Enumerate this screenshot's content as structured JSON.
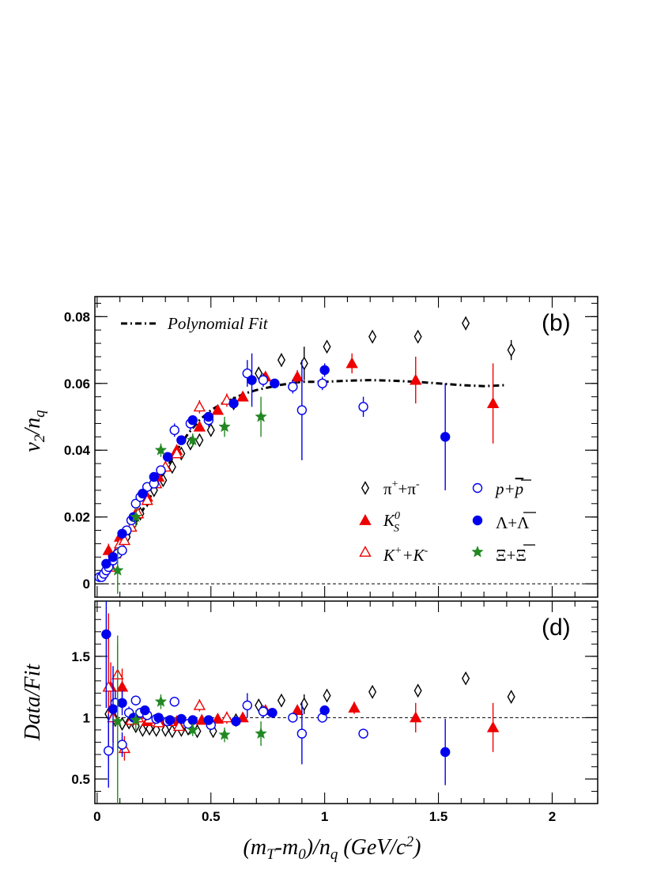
{
  "colors": {
    "pi": "#000000",
    "ks": "#ee0000",
    "kch": "#ee0000",
    "p": "#0000ee",
    "lambda": "#0000ee",
    "xi": "#228822"
  },
  "chart_data": [
    {
      "type": "scatter",
      "panel_label": "(b)",
      "ylabel": "v2/nq",
      "ylim": [
        -0.004,
        0.086
      ],
      "xlim": [
        -0.01,
        2.2
      ],
      "yticks": [
        0,
        0.02,
        0.04,
        0.06,
        0.08
      ],
      "ytick_labels": [
        "0",
        "0.02",
        "0.04",
        "0.06",
        "0.08"
      ],
      "reference_line": 0,
      "fit": {
        "name": "Polynomial Fit",
        "x": [
          0.1,
          0.15,
          0.2,
          0.25,
          0.3,
          0.35,
          0.4,
          0.45,
          0.5,
          0.55,
          0.6,
          0.65,
          0.7,
          0.8,
          0.9,
          1.0,
          1.1,
          1.2,
          1.3,
          1.4,
          1.5,
          1.6,
          1.7,
          1.8
        ],
        "y": [
          0.01,
          0.016,
          0.022,
          0.028,
          0.034,
          0.04,
          0.045,
          0.049,
          0.052,
          0.054,
          0.0555,
          0.057,
          0.058,
          0.0595,
          0.0605,
          0.0605,
          0.0608,
          0.061,
          0.0608,
          0.0605,
          0.06,
          0.0595,
          0.0592,
          0.0595
        ]
      },
      "series": [
        {
          "name": "π⁺+π⁻",
          "key": "pi",
          "marker": "diamond-open",
          "x": [
            0.04,
            0.06,
            0.08,
            0.1,
            0.13,
            0.16,
            0.19,
            0.22,
            0.25,
            0.29,
            0.33,
            0.37,
            0.41,
            0.45,
            0.5,
            0.6,
            0.71,
            0.81,
            0.91,
            1.01,
            1.21,
            1.41,
            1.62,
            1.82
          ],
          "y": [
            0.004,
            0.006,
            0.008,
            0.01,
            0.014,
            0.018,
            0.021,
            0.025,
            0.028,
            0.031,
            0.035,
            0.039,
            0.042,
            0.043,
            0.046,
            0.054,
            0.063,
            0.067,
            0.066,
            0.071,
            0.074,
            0.074,
            0.078,
            0.07
          ],
          "err": [
            0.001,
            0.001,
            0.001,
            0.001,
            0.001,
            0.001,
            0.001,
            0.001,
            0.001,
            0.001,
            0.001,
            0.001,
            0.001,
            0.001,
            0.001,
            0.001,
            0.001,
            0.002,
            0.005,
            0.001,
            0.001,
            0.001,
            0.002,
            0.003
          ]
        },
        {
          "name": "K_S^0",
          "key": "ks",
          "marker": "triangle-filled",
          "x": [
            0.05,
            0.1,
            0.17,
            0.22,
            0.27,
            0.35,
            0.45,
            0.53,
            0.64,
            0.74,
            0.88,
            1.12,
            1.4,
            1.74
          ],
          "y": [
            0.01,
            0.014,
            0.021,
            0.026,
            0.032,
            0.04,
            0.047,
            0.052,
            0.056,
            0.062,
            0.062,
            0.066,
            0.061,
            0.054
          ],
          "err": [
            0.002,
            0.002,
            0.001,
            0.001,
            0.001,
            0.001,
            0.001,
            0.001,
            0.001,
            0.001,
            0.002,
            0.003,
            0.007,
            0.012
          ]
        },
        {
          "name": "K⁺+K⁻",
          "key": "kch",
          "marker": "triangle-open",
          "x": [
            0.06,
            0.08,
            0.1,
            0.12,
            0.15,
            0.18,
            0.22,
            0.26,
            0.3,
            0.35,
            0.45,
            0.57
          ],
          "y": [
            0.005,
            0.009,
            0.012,
            0.013,
            0.017,
            0.021,
            0.025,
            0.03,
            0.035,
            0.039,
            0.053,
            0.055
          ],
          "err": [
            0.001,
            0.001,
            0.001,
            0.001,
            0.001,
            0.001,
            0.001,
            0.001,
            0.001,
            0.001,
            0.002,
            0.002
          ]
        },
        {
          "name": "p+p̄",
          "key": "p",
          "marker": "circle-open",
          "x": [
            0.01,
            0.02,
            0.03,
            0.04,
            0.05,
            0.07,
            0.09,
            0.11,
            0.13,
            0.15,
            0.17,
            0.19,
            0.22,
            0.25,
            0.28,
            0.34,
            0.41,
            0.49,
            0.66,
            0.73,
            0.86,
            0.9,
            0.99,
            1.17
          ],
          "y": [
            0.002,
            0.002,
            0.003,
            0.004,
            0.005,
            0.007,
            0.009,
            0.01,
            0.016,
            0.019,
            0.024,
            0.026,
            0.029,
            0.03,
            0.034,
            0.046,
            0.048,
            0.049,
            0.063,
            0.061,
            0.059,
            0.052,
            0.06,
            0.053
          ],
          "err": [
            0.001,
            0.001,
            0.001,
            0.001,
            0.001,
            0.001,
            0.001,
            0.001,
            0.001,
            0.001,
            0.001,
            0.001,
            0.001,
            0.001,
            0.001,
            0.002,
            0.002,
            0.002,
            0.004,
            0.002,
            0.002,
            0.015,
            0.002,
            0.003
          ]
        },
        {
          "name": "Λ+Λ̄",
          "key": "lambda",
          "marker": "circle-filled",
          "x": [
            0.04,
            0.07,
            0.11,
            0.16,
            0.2,
            0.25,
            0.31,
            0.37,
            0.42,
            0.49,
            0.6,
            0.68,
            0.78,
            1.0,
            1.53
          ],
          "y": [
            0.006,
            0.008,
            0.015,
            0.02,
            0.027,
            0.032,
            0.038,
            0.043,
            0.049,
            0.05,
            0.054,
            0.061,
            0.06,
            0.064,
            0.044
          ],
          "err": [
            0.001,
            0.001,
            0.001,
            0.001,
            0.001,
            0.001,
            0.001,
            0.001,
            0.001,
            0.001,
            0.001,
            0.008,
            0.001,
            0.002,
            0.016
          ]
        },
        {
          "name": "Ξ+Ξ̄",
          "key": "xi",
          "marker": "star",
          "x": [
            0.09,
            0.17,
            0.28,
            0.42,
            0.56,
            0.72
          ],
          "y": [
            0.004,
            0.02,
            0.04,
            0.043,
            0.047,
            0.05
          ],
          "err": [
            0.007,
            0.003,
            0.002,
            0.002,
            0.003,
            0.006
          ]
        }
      ]
    },
    {
      "type": "scatter",
      "panel_label": "(d)",
      "ylabel": "Data/Fit",
      "xlabel": "(mT-m0)/nq (GeV/c2)",
      "ylim": [
        0.3,
        1.95
      ],
      "xlim": [
        -0.01,
        2.2
      ],
      "yticks": [
        0.5,
        1,
        1.5
      ],
      "ytick_labels": [
        "0.5",
        "1",
        "1.5"
      ],
      "xticks": [
        0,
        0.5,
        1,
        1.5,
        2
      ],
      "xtick_labels": [
        "0",
        "0.5",
        "1",
        "1.5",
        "2"
      ],
      "reference_line": 1,
      "series": [
        {
          "name": "π⁺+π⁻",
          "key": "pi",
          "marker": "diamond-open",
          "x": [
            0.05,
            0.08,
            0.11,
            0.14,
            0.17,
            0.2,
            0.23,
            0.26,
            0.3,
            0.33,
            0.37,
            0.4,
            0.44,
            0.51,
            0.61,
            0.71,
            0.81,
            0.91,
            1.01,
            1.21,
            1.41,
            1.62,
            1.82
          ],
          "y": [
            1.03,
            0.98,
            0.95,
            0.96,
            0.93,
            0.9,
            0.91,
            0.9,
            0.9,
            0.89,
            0.9,
            0.91,
            0.89,
            0.89,
            0.98,
            1.1,
            1.14,
            1.11,
            1.18,
            1.21,
            1.22,
            1.32,
            1.17
          ],
          "err": [
            0.05,
            0.03,
            0.02,
            0.02,
            0.02,
            0.02,
            0.02,
            0.02,
            0.02,
            0.02,
            0.02,
            0.02,
            0.02,
            0.02,
            0.02,
            0.03,
            0.04,
            0.08,
            0.03,
            0.02,
            0.02,
            0.03,
            0.04
          ]
        },
        {
          "name": "K_S^0",
          "key": "ks",
          "marker": "triangle-filled",
          "x": [
            0.06,
            0.11,
            0.17,
            0.22,
            0.28,
            0.35,
            0.46,
            0.53,
            0.64,
            0.74,
            0.88,
            1.13,
            1.4,
            1.74
          ],
          "y": [
            1.25,
            1.25,
            1.0,
            0.97,
            0.97,
            0.97,
            0.98,
            0.99,
            1.0,
            1.06,
            1.06,
            1.08,
            1.0,
            0.92
          ],
          "err": [
            0.2,
            0.15,
            0.04,
            0.03,
            0.03,
            0.03,
            0.03,
            0.03,
            0.03,
            0.03,
            0.04,
            0.05,
            0.12,
            0.2
          ]
        },
        {
          "name": "K⁺+K⁻",
          "key": "kch",
          "marker": "triangle-open",
          "x": [
            0.05,
            0.07,
            0.09,
            0.12,
            0.15,
            0.18,
            0.2,
            0.23,
            0.27,
            0.32,
            0.36,
            0.45,
            0.57
          ],
          "y": [
            1.25,
            1.0,
            1.35,
            0.75,
            0.98,
            1.0,
            1.03,
            0.99,
            0.96,
            0.97,
            0.93,
            1.1,
            1.0
          ],
          "err": [
            0.6,
            0.2,
            0.25,
            0.1,
            0.05,
            0.04,
            0.04,
            0.03,
            0.03,
            0.03,
            0.03,
            0.05,
            0.05
          ]
        },
        {
          "name": "p+p̄",
          "key": "p",
          "marker": "circle-open",
          "x": [
            0.05,
            0.08,
            0.11,
            0.14,
            0.17,
            0.19,
            0.22,
            0.26,
            0.31,
            0.34,
            0.4,
            0.5,
            0.66,
            0.73,
            0.86,
            0.9,
            0.99,
            1.17
          ],
          "y": [
            0.73,
            1.12,
            0.78,
            1.04,
            1.14,
            1.04,
            1.02,
            0.99,
            0.97,
            1.13,
            0.95,
            0.94,
            1.1,
            1.05,
            1.0,
            0.87,
            1.0,
            0.87
          ],
          "err": [
            0.3,
            0.1,
            0.1,
            0.05,
            0.04,
            0.04,
            0.03,
            0.03,
            0.03,
            0.04,
            0.04,
            0.04,
            0.1,
            0.05,
            0.04,
            0.25,
            0.04,
            0.04
          ]
        },
        {
          "name": "Λ+Λ̄",
          "key": "lambda",
          "marker": "circle-filled",
          "x": [
            0.04,
            0.07,
            0.11,
            0.16,
            0.21,
            0.27,
            0.32,
            0.37,
            0.42,
            0.49,
            0.61,
            0.77,
            1.0,
            1.53
          ],
          "y": [
            1.68,
            1.07,
            1.12,
            1.0,
            1.06,
            1.0,
            0.98,
            0.99,
            0.98,
            0.98,
            0.97,
            1.04,
            1.06,
            0.72
          ],
          "err": [
            0.6,
            0.35,
            0.1,
            0.04,
            0.03,
            0.03,
            0.03,
            0.03,
            0.03,
            0.03,
            0.03,
            0.03,
            0.04,
            0.27
          ]
        },
        {
          "name": "Ξ+Ξ̄",
          "key": "xi",
          "marker": "star",
          "x": [
            0.09,
            0.17,
            0.28,
            0.42,
            0.56,
            0.72
          ],
          "y": [
            0.97,
            0.98,
            1.13,
            0.9,
            0.86,
            0.87
          ],
          "err": [
            0.7,
            0.08,
            0.06,
            0.05,
            0.06,
            0.1
          ]
        }
      ]
    }
  ],
  "axis_labels": {
    "top_y": {
      "main": "v",
      "sub1": "2",
      "slash": "/n",
      "sub2": "q"
    },
    "bottom_y": "Data/Fit",
    "x": {
      "part1": "(m",
      "sub1": "T",
      "part2": "-m",
      "sub2": "0",
      "part3": ")/n",
      "sub3": "q",
      "part4": " (GeV/c",
      "sup": "2",
      "part5": ")"
    }
  },
  "legend": {
    "fit_label": "Polynomial Fit",
    "pi": {
      "base": "π",
      "sup1": "+",
      "mid": "+π",
      "sup2": "-"
    },
    "ks": {
      "base": "K",
      "sub": "S",
      "sup": "0"
    },
    "kch": {
      "base": "K",
      "sup1": "+",
      "mid": "+K",
      "sup2": "-"
    },
    "p": {
      "base": "p+",
      "bar": "p"
    },
    "lambda": {
      "base": "Λ+",
      "bar": "Λ"
    },
    "xi": {
      "base": "Ξ+",
      "bar": "Ξ"
    }
  }
}
